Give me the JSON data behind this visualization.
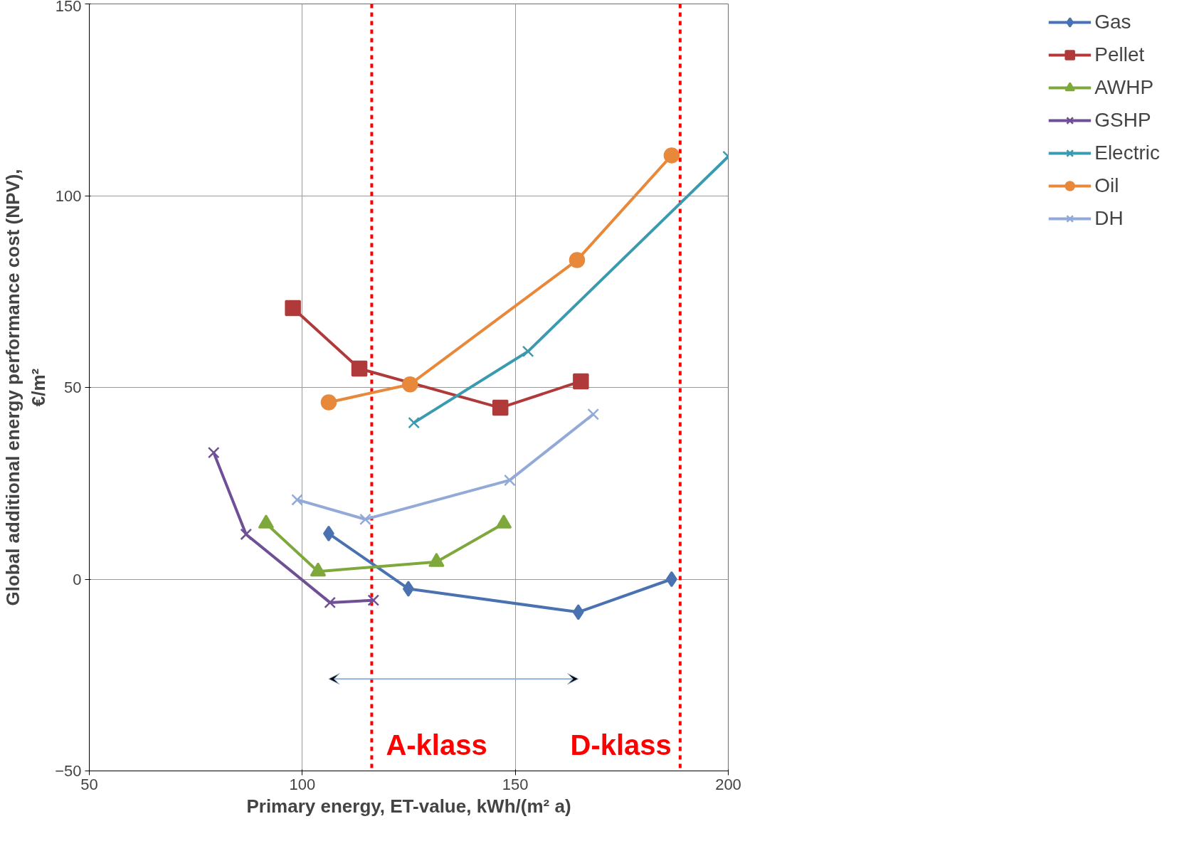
{
  "chart_data": {
    "type": "line",
    "xlabel": "Primary energy, ET-value, kWh/(m² a)",
    "ylabel": "Global additional energy performance cost (NPV),\n€/m²",
    "xlim": [
      50,
      200
    ],
    "xticks": [
      50,
      100,
      150,
      200
    ],
    "ylim": [
      -50,
      150
    ],
    "yticks": [
      -50,
      0,
      50,
      100,
      150
    ],
    "grid": true,
    "legend": "right",
    "line_style": "solid",
    "series": [
      {
        "name": "Gas",
        "color": "#4a72b0",
        "marker": "diamond",
        "x": [
          106.2,
          124.9,
          164.8,
          186.7
        ],
        "values": [
          11.9,
          -2.5,
          -8.6,
          0
        ]
      },
      {
        "name": "Pellet",
        "color": "#b03a3a",
        "marker": "square",
        "x": [
          97.8,
          113.4,
          146.5,
          165.4
        ],
        "values": [
          70.7,
          54.9,
          44.7,
          51.6
        ]
      },
      {
        "name": "AWHP",
        "color": "#7fa83c",
        "marker": "triangle",
        "x": [
          91.5,
          103.7,
          131.5,
          147.3
        ],
        "values": [
          14.5,
          2.0,
          4.5,
          14.5
        ]
      },
      {
        "name": "GSHP",
        "color": "#6f4f96",
        "marker": "cross",
        "x": [
          79.2,
          86.8,
          106.5,
          116.7
        ],
        "values": [
          33.0,
          11.7,
          -6.1,
          -5.5
        ]
      },
      {
        "name": "Electric",
        "color": "#3a9ab0",
        "marker": "cross",
        "x": [
          126.2,
          153.0,
          200
        ],
        "values": [
          40.8,
          59.4,
          110.2
        ]
      },
      {
        "name": "Oil",
        "color": "#e8883a",
        "marker": "circle",
        "x": [
          106.2,
          125.3,
          164.5,
          186.7
        ],
        "values": [
          46.1,
          50.8,
          83.2,
          110.5
        ]
      },
      {
        "name": "DH",
        "color": "#93a9d8",
        "marker": "cross",
        "x": [
          98.8,
          114.8,
          148.7,
          168.3
        ],
        "values": [
          20.7,
          15.6,
          25.8,
          43.0
        ]
      }
    ],
    "ref_lines": [
      {
        "axis": "x",
        "value": 116.3,
        "label": "A-klass",
        "color": "#ff0000",
        "line_style": "dashed"
      },
      {
        "axis": "x",
        "value": 188.7,
        "label": "D-klass",
        "color": "#ff0000",
        "line_style": "dashed"
      }
    ]
  }
}
